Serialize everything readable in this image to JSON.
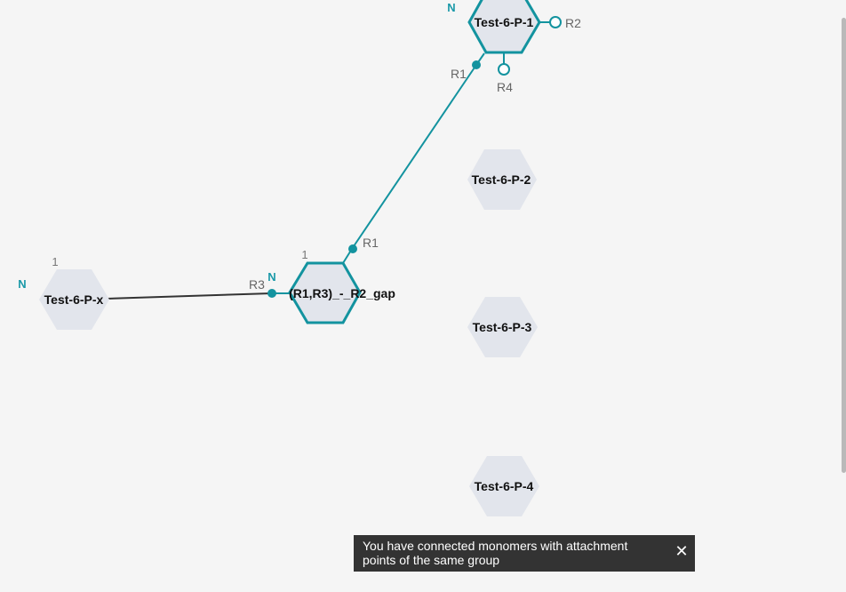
{
  "canvas": {
    "monomers": [
      {
        "name": "Test-6-P-1",
        "selected": true,
        "n_terminal": "N"
      },
      {
        "name": "Test-6-P-2",
        "selected": false
      },
      {
        "name": "Test-6-P-3",
        "selected": false
      },
      {
        "name": "Test-6-P-4",
        "selected": false
      },
      {
        "name": "Test-6-P-x",
        "selected": false,
        "n_terminal": "N",
        "index": "1"
      },
      {
        "name": "(R1,R3)_-_R2_gap",
        "selected": true,
        "n_terminal": "N",
        "index": "1"
      }
    ],
    "attachment_points": {
      "p1_r1": "R1",
      "p1_r2": "R2",
      "p1_r4": "R4",
      "gap_r1": "R1",
      "gap_r3": "R3"
    }
  },
  "toast": {
    "message": "You have connected monomers with attachment points of the same group",
    "close_icon": "close-icon"
  },
  "colors": {
    "accent": "#13939f",
    "hex_fill": "#e2e5ec",
    "background": "#f5f5f5",
    "toast_bg": "#333333"
  }
}
